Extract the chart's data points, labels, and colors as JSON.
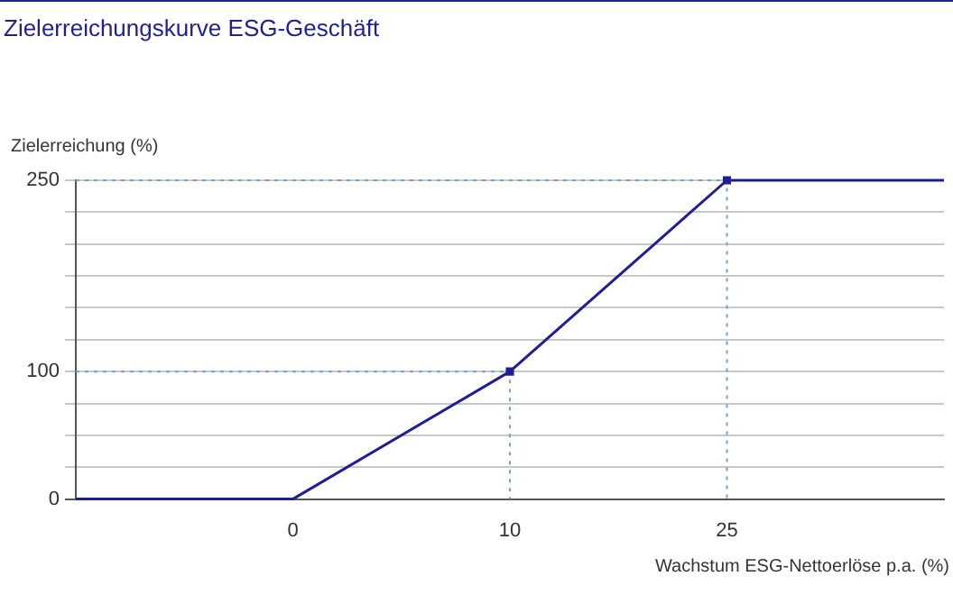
{
  "chart_data": {
    "type": "line",
    "title": "Zielerreichungskurve ESG-Geschäft",
    "ylabel": "Zielerreichung (%)",
    "xlabel": "Wachstum ESG-Nettoerlöse p.a. (%)",
    "categories": [
      null,
      "0",
      "10",
      "25",
      null
    ],
    "series": [
      {
        "type": "line",
        "color": "#1e1e96",
        "values": [
          0,
          0,
          100,
          250,
          250
        ]
      },
      {
        "type": "scatter",
        "color": "#1e1e96",
        "x": [
          "10",
          "25"
        ],
        "values": [
          100,
          250
        ],
        "marker": "square",
        "line_style": "dotted"
      }
    ],
    "ylim": [
      0,
      250
    ],
    "yticks": [
      0,
      {
        "value": 25,
        "label": null
      },
      {
        "value": 50,
        "label": null
      },
      {
        "value": 75,
        "label": null
      },
      100,
      {
        "value": 125,
        "label": null
      },
      {
        "value": 150,
        "label": null
      },
      {
        "value": 175,
        "label": null
      },
      {
        "value": 200,
        "label": null
      },
      {
        "value": 225,
        "label": null
      },
      250
    ],
    "grid": "y",
    "legend": false
  }
}
